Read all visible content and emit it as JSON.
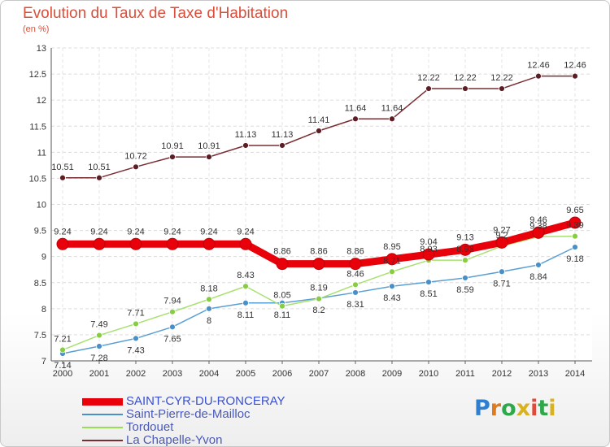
{
  "title": "Evolution du Taux de Taxe d'Habitation",
  "subtitle": "(en %)",
  "brand": {
    "letters": [
      "P",
      "r",
      "o",
      "x",
      "i",
      "t",
      "i"
    ],
    "colors": [
      "#2e7fd0",
      "#e07a1f",
      "#2ea84a",
      "#d9b21f",
      "#e04a3a",
      "#2ea84a",
      "#d9b21f"
    ]
  },
  "chart_data": {
    "type": "line",
    "x": [
      "2000",
      "2001",
      "2002",
      "2003",
      "2004",
      "2005",
      "2006",
      "2007",
      "2008",
      "2009",
      "2010",
      "2011",
      "2012",
      "2013",
      "2014"
    ],
    "ylim": [
      7,
      13
    ],
    "yticks": [
      "7",
      "7.5",
      "8",
      "8.5",
      "9",
      "9.5",
      "10",
      "10.5",
      "11",
      "11.5",
      "12",
      "12.5",
      "13"
    ],
    "grid": true,
    "legend_position": "bottom-left",
    "series": [
      {
        "name": "SAINT-CYR-DU-RONCERAY",
        "color": "#e8000b",
        "labels": [
          "9.24",
          "9.24",
          "9.24",
          "9.24",
          "9.24",
          "9.24",
          "8.86",
          "8.86",
          "8.86",
          "8.95",
          "9.04",
          "9.13",
          "9.27",
          "9.46",
          "9.65"
        ],
        "values": [
          9.24,
          9.24,
          9.24,
          9.24,
          9.24,
          9.24,
          8.86,
          8.86,
          8.86,
          8.95,
          9.04,
          9.13,
          9.27,
          9.46,
          9.65
        ]
      },
      {
        "name": "Saint-Pierre-de-Mailloc",
        "color": "#4a90c8",
        "labels": [
          "7.14",
          "7.28",
          "7.43",
          "7.65",
          "8",
          "8.11",
          "8.11",
          "8.2",
          "8.31",
          "8.43",
          "8.51",
          "8.59",
          "8.71",
          "8.84",
          "9.18"
        ],
        "values": [
          7.14,
          7.28,
          7.43,
          7.65,
          8.0,
          8.11,
          8.11,
          8.2,
          8.31,
          8.43,
          8.51,
          8.59,
          8.71,
          8.84,
          9.18
        ]
      },
      {
        "name": "Tordouet",
        "color": "#99dd55",
        "labels": [
          "7.21",
          "7.49",
          "7.71",
          "7.94",
          "8.18",
          "8.43",
          "8.05",
          "8.19",
          "8.46",
          "8.71",
          "8.93",
          "8.93",
          "9.2",
          "9.38",
          "9.39"
        ],
        "values": [
          7.21,
          7.49,
          7.71,
          7.94,
          8.18,
          8.43,
          8.05,
          8.19,
          8.46,
          8.71,
          8.93,
          8.93,
          9.2,
          9.38,
          9.39
        ]
      },
      {
        "name": "La Chapelle-Yvon",
        "color": "#7a2e34",
        "labels": [
          "10.51",
          "10.51",
          "10.72",
          "10.91",
          "10.91",
          "11.13",
          "11.13",
          "11.41",
          "11.64",
          "11.64",
          "12.22",
          "12.22",
          "12.22",
          "12.46",
          "12.46"
        ],
        "values": [
          10.51,
          10.51,
          10.72,
          10.91,
          10.91,
          11.13,
          11.13,
          11.41,
          11.64,
          11.64,
          12.22,
          12.22,
          12.22,
          12.46,
          12.46
        ]
      }
    ]
  }
}
